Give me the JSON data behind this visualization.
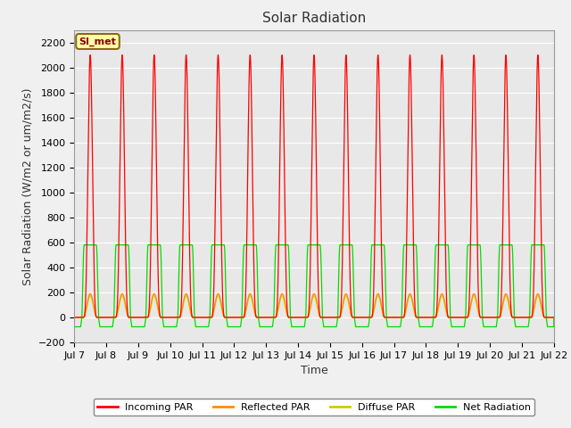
{
  "title": "Solar Radiation",
  "xlabel": "Time",
  "ylabel": "Solar Radiation (W/m2 or um/m2/s)",
  "ylim": [
    -200,
    2300
  ],
  "x_tick_labels": [
    "Jul 7",
    "Jul 8",
    "Jul 9",
    "Jul 10",
    "Jul 11",
    "Jul 12",
    "Jul 13",
    "Jul 14",
    "Jul 15",
    "Jul 16",
    "Jul 17",
    "Jul 18",
    "Jul 19",
    "Jul 20",
    "Jul 21",
    "Jul 22"
  ],
  "annotation_text": "SI_met",
  "annotation_color": "#8B0000",
  "annotation_bg": "#FFFFAA",
  "annotation_border": "#8B6914",
  "colors": {
    "incoming": "#FF0000",
    "reflected": "#FF8C00",
    "diffuse": "#CCCC00",
    "net": "#00DD00"
  },
  "legend_labels": [
    "Incoming PAR",
    "Reflected PAR",
    "Diffuse PAR",
    "Net Radiation"
  ],
  "background_color": "#E8E8E8",
  "grid_color": "#FFFFFF",
  "title_fontsize": 11,
  "axis_fontsize": 9,
  "tick_fontsize": 8,
  "num_days": 15,
  "peak_incoming": 2100,
  "peak_net": 580,
  "peak_reflected": 190,
  "peak_diffuse": 175,
  "night_net": -75,
  "points_per_day": 500
}
